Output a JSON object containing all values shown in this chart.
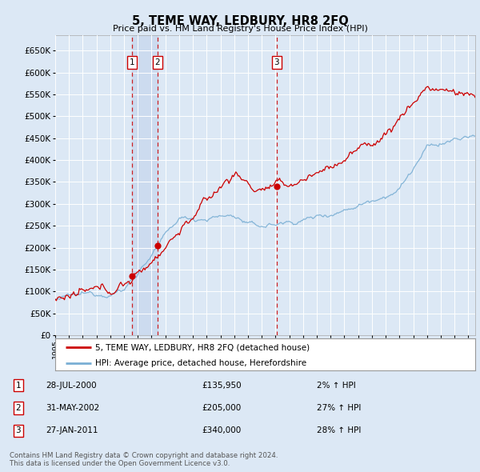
{
  "title": "5, TEME WAY, LEDBURY, HR8 2FQ",
  "subtitle": "Price paid vs. HM Land Registry's House Price Index (HPI)",
  "background_color": "#dce8f5",
  "plot_bg_color": "#dce8f5",
  "ylim": [
    0,
    685000
  ],
  "yticks": [
    0,
    50000,
    100000,
    150000,
    200000,
    250000,
    300000,
    350000,
    400000,
    450000,
    500000,
    550000,
    600000,
    650000
  ],
  "xlim_start": 1995.0,
  "xlim_end": 2025.5,
  "grid_color": "#ffffff",
  "legend_label_red": "5, TEME WAY, LEDBURY, HR8 2FQ (detached house)",
  "legend_label_blue": "HPI: Average price, detached house, Herefordshire",
  "transactions": [
    {
      "num": 1,
      "date": "28-JUL-2000",
      "price": 135950,
      "pct": "2%",
      "dir": "↑",
      "year": 2000.57
    },
    {
      "num": 2,
      "date": "31-MAY-2002",
      "price": 205000,
      "pct": "27%",
      "dir": "↑",
      "year": 2002.42
    },
    {
      "num": 3,
      "date": "27-JAN-2011",
      "price": 340000,
      "pct": "28%",
      "dir": "↑",
      "year": 2011.08
    }
  ],
  "footnote": "Contains HM Land Registry data © Crown copyright and database right 2024.\nThis data is licensed under the Open Government Licence v3.0.",
  "red_color": "#cc0000",
  "blue_color": "#7aafd4",
  "shade_color": "#c8d8ee",
  "sale_dot_color": "#cc0000"
}
